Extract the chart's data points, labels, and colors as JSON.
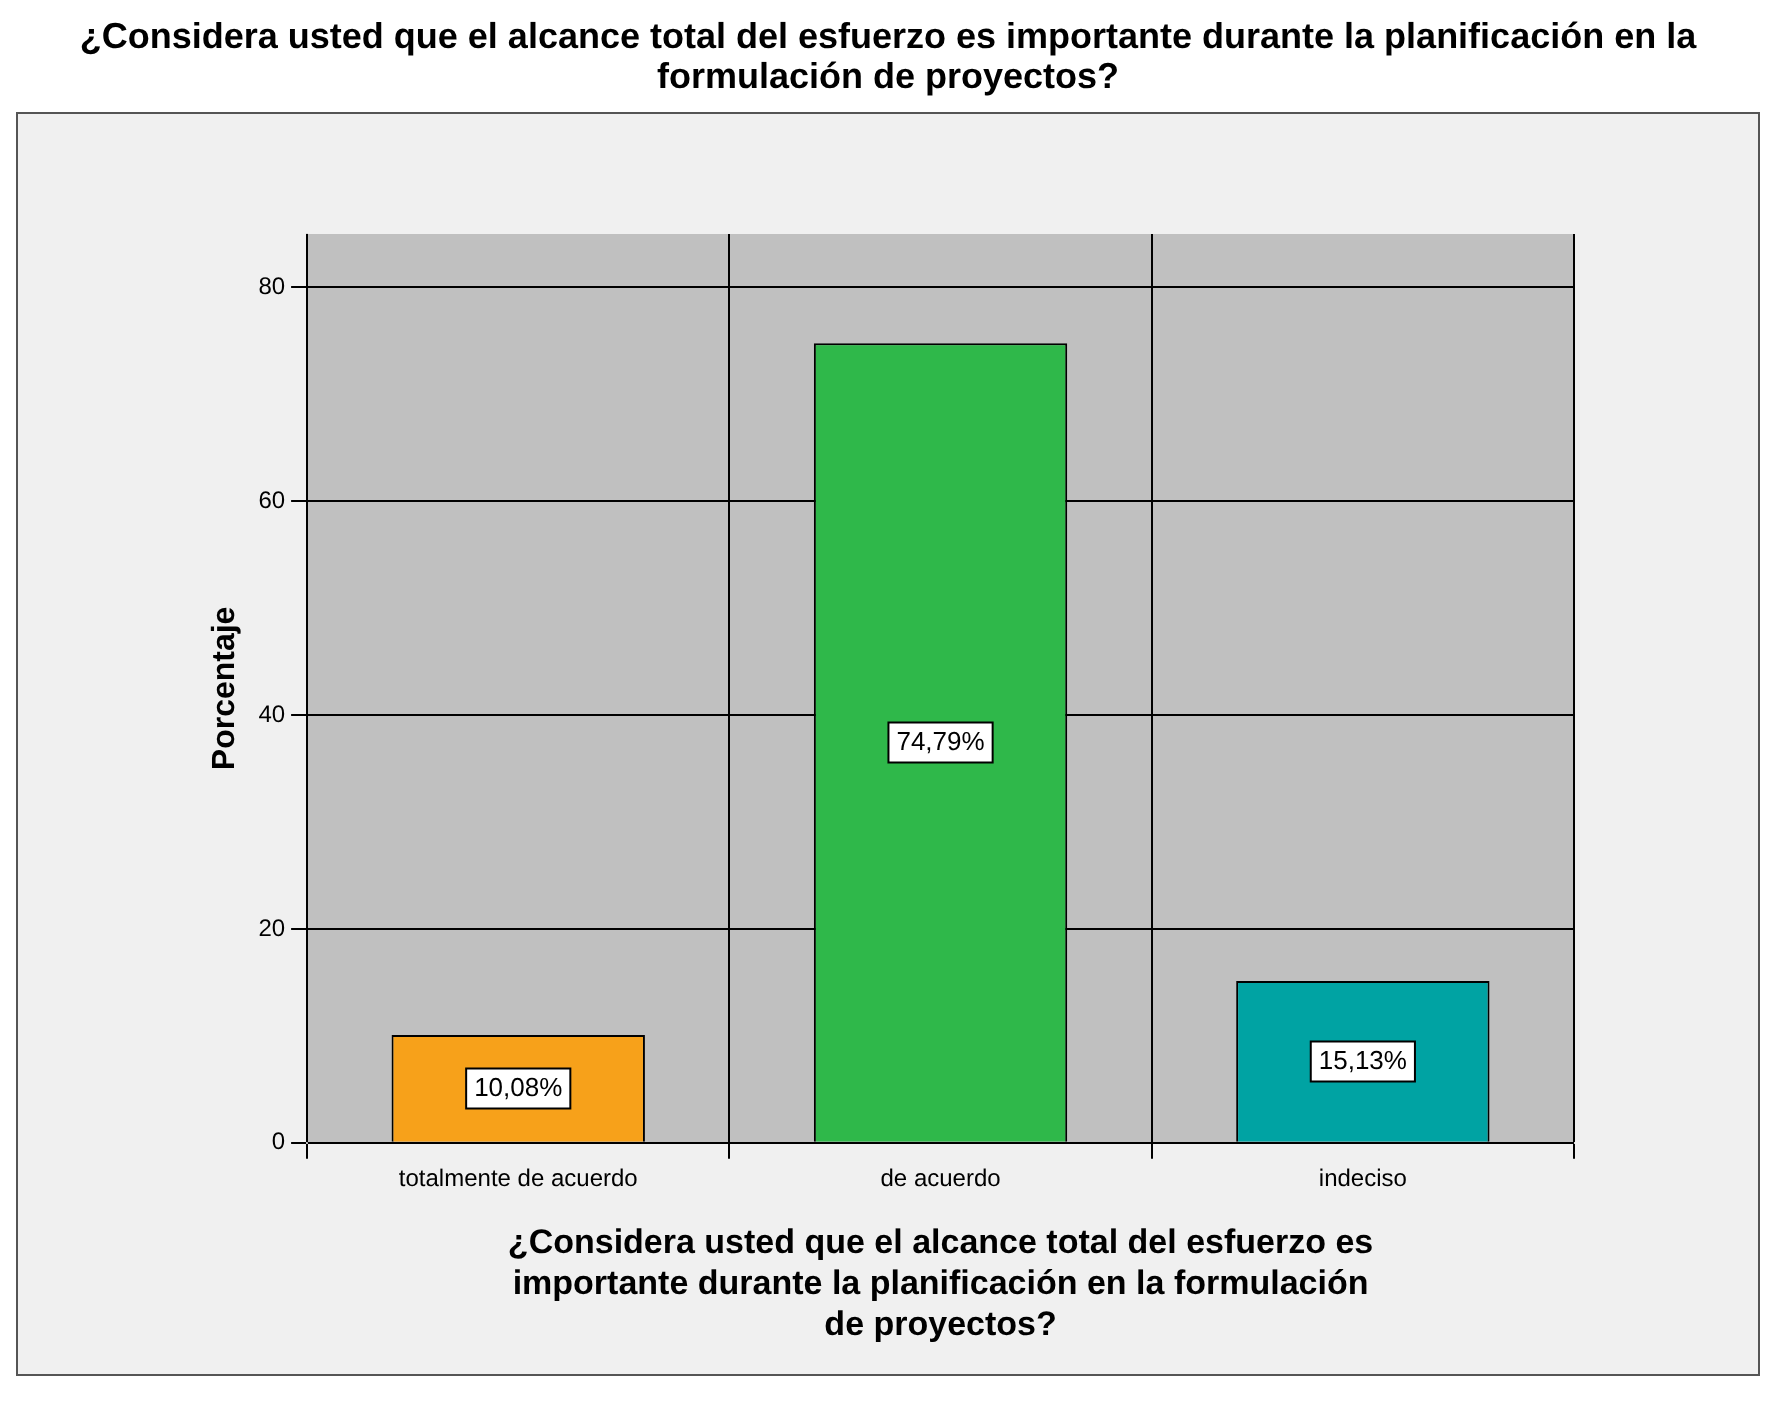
{
  "chart_data": {
    "type": "bar",
    "title": "¿Considera usted que el alcance total del esfuerzo es importante durante la planificación en la formulación de proyectos?",
    "xlabel": "¿Considera usted que el alcance total del esfuerzo es importante durante la planificación en la formulación de proyectos?",
    "ylabel": "Porcentaje",
    "categories": [
      "totalmente de acuerdo",
      "de acuerdo",
      "indeciso"
    ],
    "values": [
      10.08,
      74.79,
      15.13
    ],
    "colors": [
      "#f7a11a",
      "#2fb84a",
      "#00a3a3"
    ],
    "value_labels": [
      "10,08%",
      "74,79%",
      "15,13%"
    ],
    "ylim": [
      0,
      85
    ],
    "yticks": [
      0,
      20,
      40,
      60,
      80
    ],
    "grid": true,
    "legend": false
  }
}
